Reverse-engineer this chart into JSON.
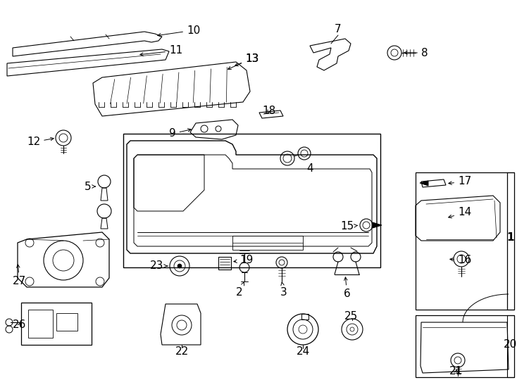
{
  "bg_color": "#ffffff",
  "line_color": "#000000",
  "fig_width": 7.34,
  "fig_height": 5.4,
  "dpi": 100
}
